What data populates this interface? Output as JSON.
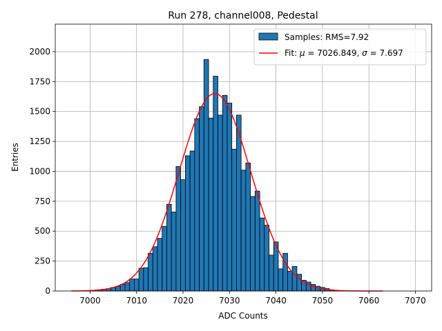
{
  "chart_data": {
    "type": "bar",
    "title": "Run 278, channel008, Pedestal",
    "xlabel": "ADC Counts",
    "ylabel": "Entries",
    "xlim": [
      6992.5,
      7073.5
    ],
    "ylim": [
      0,
      2230
    ],
    "xticks": [
      7000,
      7010,
      7020,
      7030,
      7040,
      7050,
      7060,
      7070
    ],
    "yticks": [
      0,
      250,
      500,
      750,
      1000,
      1250,
      1500,
      1750,
      2000
    ],
    "grid": true,
    "legend_position": "top-right",
    "bin_width": 1,
    "series": [
      {
        "name": "Samples: RMS=7.92",
        "kind": "histogram",
        "color": "#1f77b4",
        "edge_color": "#000000",
        "bins": [
          [
            7001,
            5
          ],
          [
            7002,
            10
          ],
          [
            7003,
            15
          ],
          [
            7004,
            20
          ],
          [
            7005,
            30
          ],
          [
            7006,
            40
          ],
          [
            7007,
            55
          ],
          [
            7008,
            70
          ],
          [
            7009,
            100
          ],
          [
            7010,
            100
          ],
          [
            7011,
            190
          ],
          [
            7012,
            195
          ],
          [
            7013,
            315
          ],
          [
            7014,
            370
          ],
          [
            7015,
            440
          ],
          [
            7016,
            540
          ],
          [
            7017,
            725
          ],
          [
            7018,
            660
          ],
          [
            7019,
            1040
          ],
          [
            7020,
            930
          ],
          [
            7021,
            1130
          ],
          [
            7022,
            1170
          ],
          [
            7023,
            1440
          ],
          [
            7024,
            1540
          ],
          [
            7025,
            1935
          ],
          [
            7026,
            1445
          ],
          [
            7027,
            1795
          ],
          [
            7028,
            1470
          ],
          [
            7029,
            1635
          ],
          [
            7030,
            1570
          ],
          [
            7031,
            1185
          ],
          [
            7032,
            1470
          ],
          [
            7033,
            1010
          ],
          [
            7034,
            1070
          ],
          [
            7035,
            790
          ],
          [
            7036,
            835
          ],
          [
            7037,
            610
          ],
          [
            7038,
            550
          ],
          [
            7039,
            300
          ],
          [
            7040,
            410
          ],
          [
            7041,
            185
          ],
          [
            7042,
            315
          ],
          [
            7043,
            165
          ],
          [
            7044,
            205
          ],
          [
            7045,
            140
          ],
          [
            7046,
            90
          ],
          [
            7047,
            75
          ],
          [
            7048,
            55
          ],
          [
            7049,
            40
          ],
          [
            7050,
            30
          ],
          [
            7051,
            20
          ],
          [
            7052,
            10
          ],
          [
            7053,
            5
          ]
        ]
      },
      {
        "name": "Fit: μ = 7026.849, σ = 7.697",
        "kind": "gaussian-fit",
        "color": "#ff0000",
        "mu": 7026.849,
        "sigma": 7.697,
        "amplitude": 1650,
        "x_range": [
          6996,
          7063
        ]
      }
    ],
    "legend": {
      "entries": [
        {
          "label_prefix": "Samples: RMS=7.92"
        },
        {
          "label_prefix": "Fit: ",
          "mu_sym": "μ",
          "mu_text": " = 7026.849, ",
          "sigma_sym": "σ",
          "sigma_text": " = 7.697"
        }
      ]
    }
  }
}
